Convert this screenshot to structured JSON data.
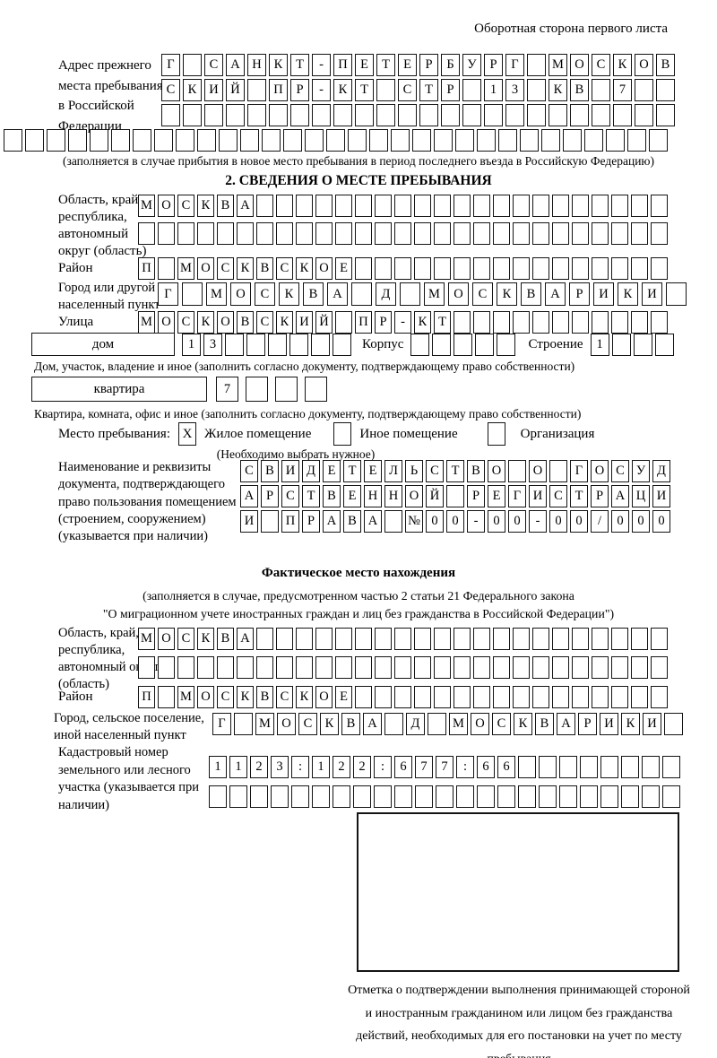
{
  "page": {
    "backside_note": "Оборотная сторона первого листа"
  },
  "prev_address": {
    "label": "Адрес прежнего места пребывания в Российской Федерации",
    "rows": [
      {
        "text": "Г САНКТ-ПЕТЕРБУРГ МОСКОВ",
        "len": 24
      },
      {
        "text": "СКИЙ ПР-КТ СТР 13 КВ 7",
        "len": 24
      },
      {
        "text": "",
        "len": 24
      }
    ],
    "full_row": {
      "text": "",
      "len": 31
    },
    "caption": "(заполняется в случае прибытия в новое место пребывания в период последнего въезда в Российскую Федерацию)"
  },
  "section2": {
    "heading": "2. СВЕДЕНИЯ О МЕСТЕ ПРЕБЫВАНИЯ",
    "region": {
      "label": "Область, край, республика, автономный округ (область)",
      "rows": [
        {
          "text": "МОСКВА",
          "len": 27
        },
        {
          "text": "",
          "len": 27
        }
      ]
    },
    "district": {
      "label": "Район",
      "row": {
        "text": "П МОСКВСКОЕ",
        "len": 27
      }
    },
    "city": {
      "label": "Город или другой населенный пункт",
      "row": {
        "text": "Г МОСКВА Д МОСКВАРИКИ",
        "len": 22
      }
    },
    "street": {
      "label": "Улица",
      "row": {
        "text": "МОСКОВСКИЙ ПР-КТ",
        "len": 27
      }
    },
    "house_line": {
      "house_label": "дом",
      "house_cells": {
        "text": "13",
        "len": 8
      },
      "korpus_label": "Корпус",
      "korpus_cells": {
        "text": "",
        "len": 5
      },
      "stroenie_label": "Строение",
      "stroenie_cells": {
        "text": "1",
        "len": 4
      }
    },
    "house_caption": "Дом, участок, владение и иное (заполнить согласно документу, подтверждающему право собственности)",
    "apartment_line": {
      "box_label": "квартира",
      "cells": {
        "text": "7",
        "len": 4
      }
    },
    "apartment_caption": "Квартира, комната, офис и иное (заполнить согласно документу, подтверждающему право собственности)",
    "stay_type": {
      "label": "Место пребывания:",
      "options": [
        {
          "label": "Жилое помещение",
          "checked": "X"
        },
        {
          "label": "Иное помещение",
          "checked": ""
        },
        {
          "label": "Организация",
          "checked": ""
        }
      ],
      "note": "(Необходимо выбрать нужное)"
    },
    "document": {
      "label": "Наименование и реквизиты документа, подтверждающего право пользования помещением (строением, сооружением) (указывается при наличии)",
      "rows": [
        {
          "text": "СВИДЕТЕЛЬСТВО О ГОСУД",
          "len": 21
        },
        {
          "text": "АРСТВЕННОЙ РЕГИСТРАЦИ",
          "len": 21
        },
        {
          "text": "И ПРАВА №00-00-00/000",
          "len": 21
        }
      ]
    }
  },
  "actual_location": {
    "heading": "Фактическое место нахождения",
    "note_line1": "(заполняется в случае, предусмотренном частью 2 статьи 21 Федерального закона",
    "note_line2": "\"О миграционном учете иностранных граждан и лиц без гражданства в Российской Федерации\")",
    "region": {
      "label": "Область, край, республика, автономный округ (область)",
      "rows": [
        {
          "text": "МОСКВА",
          "len": 27
        },
        {
          "text": "",
          "len": 27
        }
      ]
    },
    "district": {
      "label": "Район",
      "row": {
        "text": "П МОСКВСКОЕ",
        "len": 27
      }
    },
    "city": {
      "label": "Город, сельское поселение, иной населенный пункт",
      "row": {
        "text": "Г МОСКВА Д МОСКВАРИКИ",
        "len": 22
      }
    },
    "cadastre": {
      "label": "Кадастровый номер земельного или лесного участка (указывается при наличии)",
      "rows": [
        {
          "text": "1123:122:677:66",
          "len": 23
        },
        {
          "text": "",
          "len": 23
        }
      ]
    },
    "stamp_caption": "Отметка о подтверждении выполнения принимающей стороной и иностранным гражданином или лицом без гражданства действий, необходимых для его постановки на учет по месту пребывания"
  }
}
